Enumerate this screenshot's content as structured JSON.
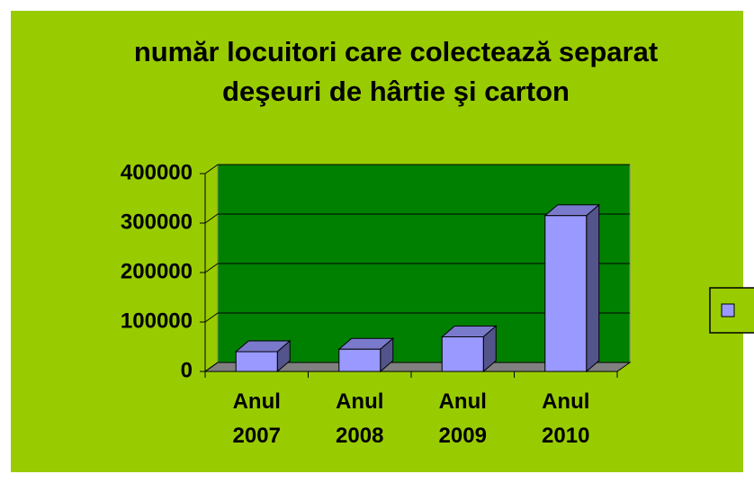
{
  "chart_data": {
    "type": "bar",
    "title": "număr locuitori care colectează separat deşeuri de hârtie şi carton",
    "categories": [
      "Anul 2007",
      "Anul 2008",
      "Anul 2009",
      "Anul 2010"
    ],
    "series": [
      {
        "color": "#9999ff",
        "values": [
          40000,
          45000,
          70000,
          315000
        ]
      }
    ],
    "ylim": [
      0,
      400000
    ],
    "yticks": [
      0,
      100000,
      200000,
      300000,
      400000
    ],
    "grid": true
  }
}
